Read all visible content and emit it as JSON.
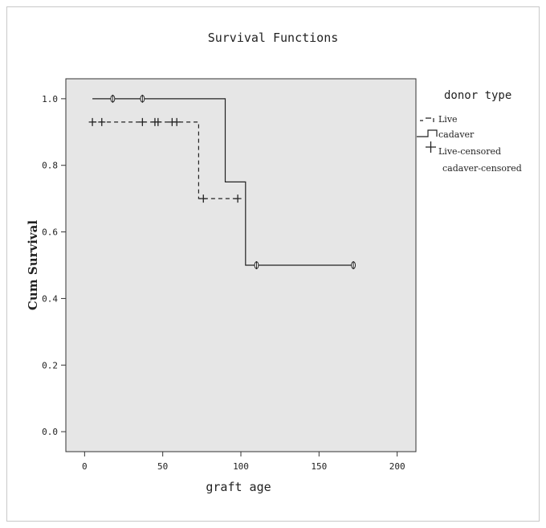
{
  "chart_data": {
    "type": "line",
    "title": "Survival Functions",
    "xlabel": "graft age",
    "ylabel": "Cum Survival",
    "xlim": [
      -12,
      212
    ],
    "ylim": [
      -0.06,
      1.06
    ],
    "xticks": [
      0,
      50,
      100,
      150,
      200
    ],
    "yticks": [
      0.0,
      0.2,
      0.4,
      0.6,
      0.8,
      1.0
    ],
    "xtick_labels": [
      "0",
      "50",
      "100",
      "150",
      "200"
    ],
    "ytick_labels": [
      "0.0",
      "0.2",
      "0.4",
      "0.6",
      "0.8",
      "1.0"
    ],
    "background_color": "#e6e6e6",
    "grid": false,
    "legend": {
      "title": "donor type",
      "placement": "right",
      "entries": [
        "Live",
        "cadaver",
        "Live-censored",
        "cadaver-censored"
      ]
    },
    "series": [
      {
        "name": "Live",
        "style": "dashed",
        "steps": [
          [
            5,
            0.93
          ],
          [
            73,
            0.93
          ],
          [
            73,
            0.7
          ],
          [
            98,
            0.7
          ]
        ],
        "censored": [
          5,
          11,
          37,
          45,
          47,
          56,
          59,
          76,
          98
        ]
      },
      {
        "name": "cadaver",
        "style": "solid",
        "steps": [
          [
            5,
            1.0
          ],
          [
            90,
            1.0
          ],
          [
            90,
            0.75
          ],
          [
            103,
            0.75
          ],
          [
            103,
            0.5
          ],
          [
            172,
            0.5
          ]
        ],
        "censored": [
          18,
          37,
          110,
          172
        ]
      }
    ]
  }
}
